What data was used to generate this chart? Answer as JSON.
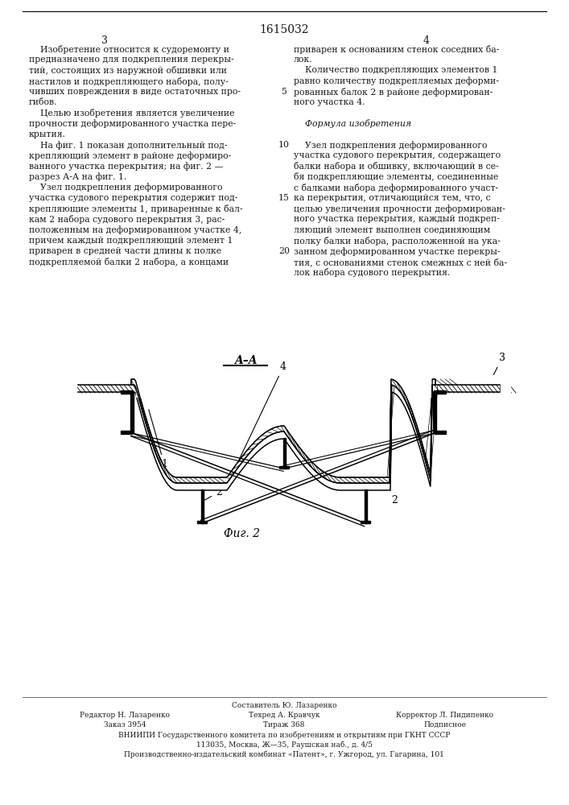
{
  "patent_number": "1615032",
  "page_left": "3",
  "page_right": "4",
  "text_color": "#1a1a1a",
  "col_left_lines": [
    "    Изобретение относится к судоремонту и",
    "предназначено для подкрепления перекры-",
    "тий, состоящих из наружной обшивки или",
    "настилов и подкрепляющего набора, полу-",
    "чивших повреждения в виде остаточных про-",
    "гибов.",
    "    Целью изобретения является увеличение",
    "прочности деформированного участка пере-",
    "крытия.",
    "    На фиг. 1 показан дополнительный под-",
    "крепляющий элемент в районе деформиро-",
    "ванного участка перекрытия; на фиг. 2 —",
    "разрез А-А на фиг. 1.",
    "    Узел подкрепления деформированного",
    "участка судового перекрытия содержит под-",
    "крепляющие элементы 1, приваренные к бал-",
    "кам 2 набора судового перекрытия 3, рас-",
    "положенным на деформированном участке 4,",
    "причем каждый подкрепляющий элемент 1",
    "приварен в средней части длины к полке",
    "подкрепляемой балки 2 набора, а концами"
  ],
  "col_right_lines": [
    "приварен к основаниям стенок соседних ба-",
    "лок.",
    "    Количество подкрепляющих элементов 1",
    "равно количеству подкрепляемых деформи-",
    "рованных балок 2 в районе деформирован-",
    "ного участка 4.",
    "",
    "    Формула изобретения",
    "",
    "    Узел подкрепления деформированного",
    "участка судового перекрытия, содержащего",
    "балки набора и обшивку, включающий в се-",
    "бя подкрепляющие элементы, соединенные",
    "с балками набора деформированного участ-",
    "ка перекрытия, отличающийся тем, что, с",
    "целью увеличения прочности деформирован-",
    "ного участка перекрытия, каждый подкреп-",
    "ляющий элемент выполнен соединяющим",
    "полку балки набора, расположенной на ука-",
    "занном деформированном участке перекры-",
    "тия, с основаниями стенок смежных с ней ба-",
    "лок набора судового перекрытия."
  ],
  "formula_row": 7,
  "italic_row": 7,
  "line_num_rows": [
    4,
    9,
    14,
    19
  ],
  "line_numbers": [
    "5",
    "10",
    "15",
    "20"
  ],
  "fig_label": "Фиг. 2",
  "section_label": "A–A",
  "footer_line1": "Составитель Ю. Лазаренко",
  "footer_left2": "Редактор Н. Лазаренко",
  "footer_mid2": "Техред А. Кравчук",
  "footer_right2": "Корректор Л. Пидипенко",
  "footer_left3": "Заказ 3954",
  "footer_mid3": "Тираж 368",
  "footer_right3": "Подписное",
  "footer_line4": "ВНИИПИ Государственного комитета по изобретениям и открытиям при ГКНТ СССР",
  "footer_line5": "113035, Москва, Ж—35, Раушская наб., д. 4/5",
  "footer_line6": "Производственно-издательский комбинат «Патент», г. Ужгород, ул. Гагарина, 101"
}
